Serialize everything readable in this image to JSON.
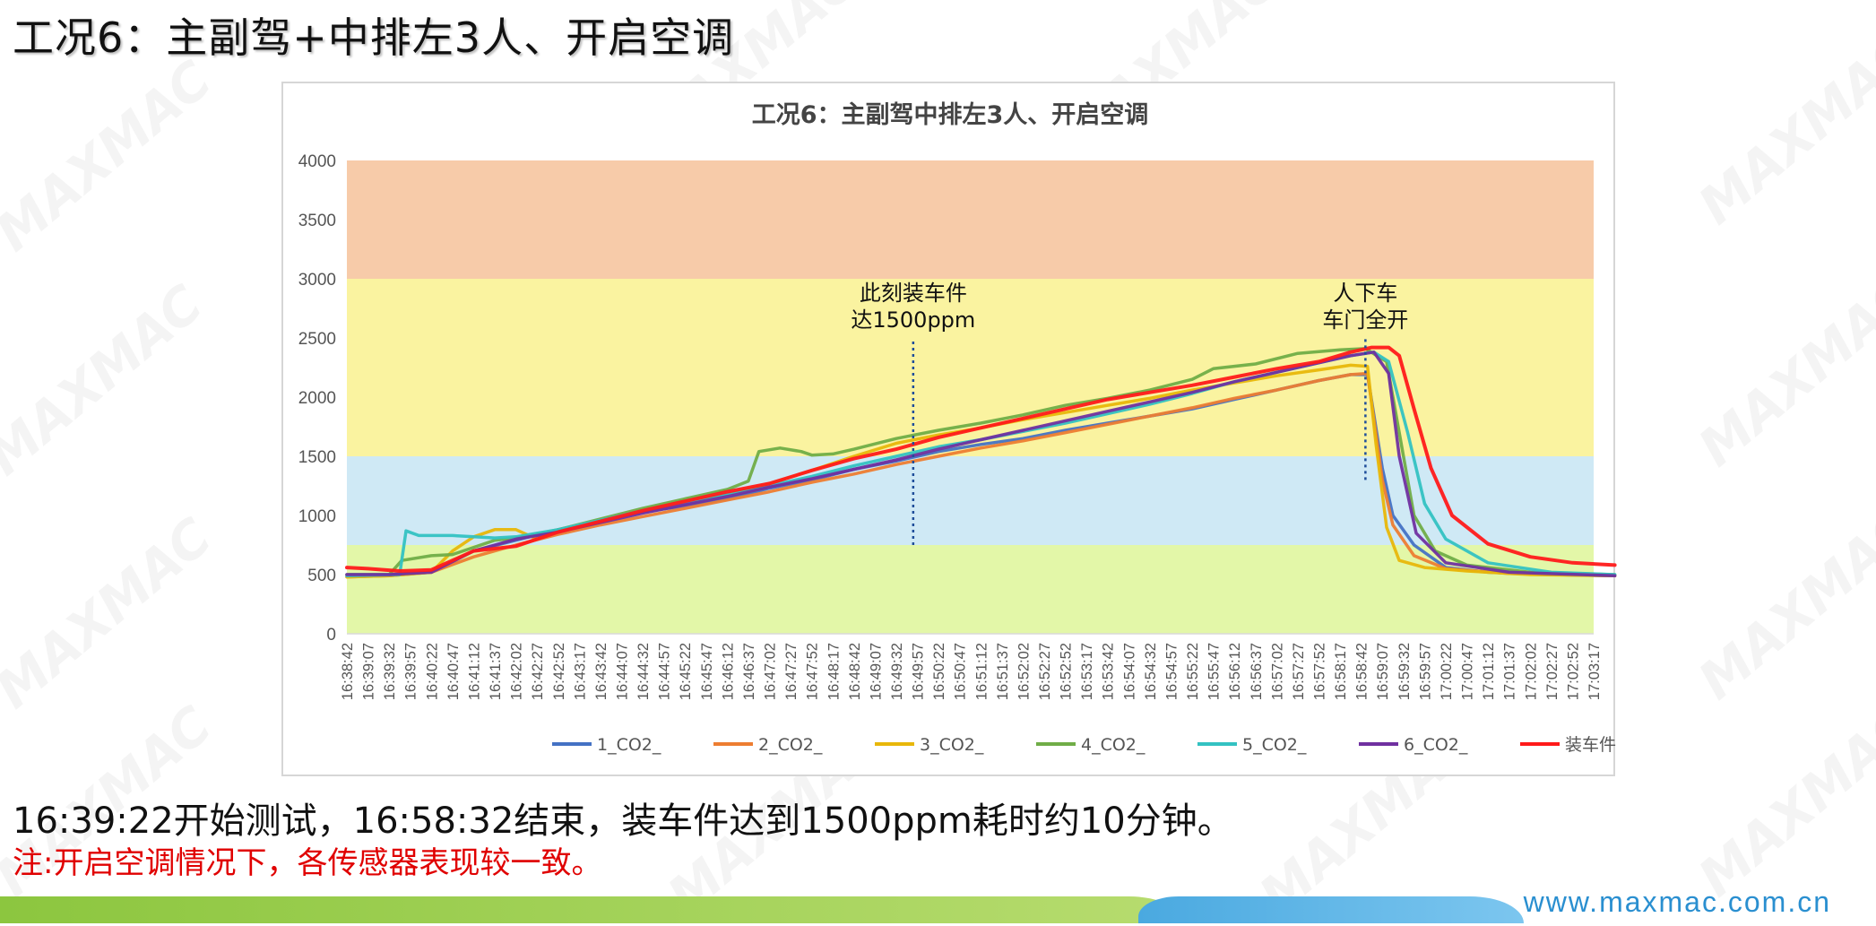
{
  "slide": {
    "title": "工况6：主副驾+中排左3人、开启空调",
    "caption": "16:39:22开始测试，16:58:32结束，装车件达到1500ppm耗时约10分钟。",
    "note": "注:开启空调情况下，各传感器表现较一致。",
    "footer_url": "www.maxmac.com.cn",
    "watermark": "MAXMAC"
  },
  "colors": {
    "band_red": "#f7cba9",
    "band_yellow": "#faf3a0",
    "band_blue": "#cfe9f5",
    "band_green": "#e3f7a8",
    "caption_text": "#111111",
    "note_text": "#e00000",
    "footer_green": "#8cc63f",
    "footer_blue": "#4aa9e0"
  },
  "chart_data": {
    "type": "line",
    "title": "工况6：主副驾中排左3人、开启空调",
    "xlabel": "",
    "ylabel": "",
    "ylim": [
      0,
      4000
    ],
    "yticks": [
      0,
      500,
      1000,
      1500,
      2000,
      2500,
      3000,
      3500,
      4000
    ],
    "x_tick_labels": [
      "16:38:42",
      "16:39:07",
      "16:39:32",
      "16:39:57",
      "16:40:22",
      "16:40:47",
      "16:41:12",
      "16:41:37",
      "16:42:02",
      "16:42:27",
      "16:42:52",
      "16:43:17",
      "16:43:42",
      "16:44:07",
      "16:44:32",
      "16:44:57",
      "16:45:22",
      "16:45:47",
      "16:46:12",
      "16:46:37",
      "16:47:02",
      "16:47:27",
      "16:47:52",
      "16:48:17",
      "16:48:42",
      "16:49:07",
      "16:49:32",
      "16:49:57",
      "16:50:22",
      "16:50:47",
      "16:51:12",
      "16:51:37",
      "16:52:02",
      "16:52:27",
      "16:52:52",
      "16:53:17",
      "16:53:42",
      "16:54:07",
      "16:54:32",
      "16:54:57",
      "16:55:22",
      "16:55:47",
      "16:56:12",
      "16:56:37",
      "16:57:02",
      "16:57:27",
      "16:57:52",
      "16:58:17",
      "16:58:42",
      "16:59:07",
      "16:59:32",
      "16:59:57",
      "17:00:22",
      "17:00:47",
      "17:01:12",
      "17:01:37",
      "17:02:02",
      "17:02:27",
      "17:02:52",
      "17:03:17"
    ],
    "bands": [
      {
        "from": 3000,
        "to": 4000,
        "color": "#f7cba9"
      },
      {
        "from": 1500,
        "to": 3000,
        "color": "#faf3a0"
      },
      {
        "from": 750,
        "to": 1500,
        "color": "#cfe9f5"
      },
      {
        "from": 0,
        "to": 750,
        "color": "#e3f7a8"
      }
    ],
    "series": [
      {
        "name": "1_CO2_",
        "color": "#4472c4",
        "points": [
          [
            0,
            500
          ],
          [
            2,
            500
          ],
          [
            4,
            520
          ],
          [
            6,
            700
          ],
          [
            8,
            790
          ],
          [
            10,
            880
          ],
          [
            12,
            960
          ],
          [
            14,
            1030
          ],
          [
            16,
            1080
          ],
          [
            18,
            1140
          ],
          [
            20,
            1230
          ],
          [
            22,
            1300
          ],
          [
            24,
            1390
          ],
          [
            26,
            1460
          ],
          [
            28,
            1540
          ],
          [
            30,
            1600
          ],
          [
            32,
            1650
          ],
          [
            34,
            1720
          ],
          [
            36,
            1780
          ],
          [
            38,
            1840
          ],
          [
            40,
            1900
          ],
          [
            42,
            1980
          ],
          [
            44,
            2060
          ],
          [
            46,
            2140
          ],
          [
            47.5,
            2190
          ],
          [
            48.3,
            2190
          ],
          [
            49,
            1400
          ],
          [
            49.5,
            1000
          ],
          [
            50.5,
            750
          ],
          [
            52,
            560
          ],
          [
            54,
            520
          ],
          [
            57,
            500
          ],
          [
            60,
            490
          ]
        ]
      },
      {
        "name": "2_CO2_",
        "color": "#ed7d31",
        "points": [
          [
            0,
            480
          ],
          [
            2,
            490
          ],
          [
            4,
            520
          ],
          [
            6,
            650
          ],
          [
            8,
            750
          ],
          [
            10,
            840
          ],
          [
            12,
            920
          ],
          [
            14,
            990
          ],
          [
            16,
            1060
          ],
          [
            18,
            1130
          ],
          [
            20,
            1200
          ],
          [
            22,
            1280
          ],
          [
            24,
            1350
          ],
          [
            26,
            1430
          ],
          [
            28,
            1500
          ],
          [
            30,
            1570
          ],
          [
            32,
            1630
          ],
          [
            34,
            1700
          ],
          [
            36,
            1770
          ],
          [
            38,
            1840
          ],
          [
            40,
            1910
          ],
          [
            42,
            1990
          ],
          [
            44,
            2060
          ],
          [
            46,
            2140
          ],
          [
            47.5,
            2190
          ],
          [
            48.3,
            2200
          ],
          [
            49,
            1300
          ],
          [
            49.5,
            920
          ],
          [
            50.5,
            660
          ],
          [
            52,
            550
          ],
          [
            55,
            510
          ],
          [
            60,
            490
          ]
        ]
      },
      {
        "name": "3_CO2_",
        "color": "#e8b70a",
        "points": [
          [
            0,
            480
          ],
          [
            2,
            490
          ],
          [
            4,
            520
          ],
          [
            5,
            700
          ],
          [
            6,
            820
          ],
          [
            7,
            880
          ],
          [
            8,
            880
          ],
          [
            9,
            800
          ],
          [
            10,
            860
          ],
          [
            12,
            940
          ],
          [
            14,
            1040
          ],
          [
            16,
            1120
          ],
          [
            18,
            1180
          ],
          [
            20,
            1270
          ],
          [
            22,
            1380
          ],
          [
            24,
            1500
          ],
          [
            26,
            1610
          ],
          [
            28,
            1680
          ],
          [
            30,
            1740
          ],
          [
            32,
            1810
          ],
          [
            34,
            1870
          ],
          [
            36,
            1930
          ],
          [
            38,
            1990
          ],
          [
            40,
            2060
          ],
          [
            42,
            2120
          ],
          [
            44,
            2180
          ],
          [
            46,
            2230
          ],
          [
            47.5,
            2270
          ],
          [
            48.3,
            2260
          ],
          [
            48.7,
            1600
          ],
          [
            49.2,
            900
          ],
          [
            49.8,
            620
          ],
          [
            51,
            560
          ],
          [
            53,
            530
          ],
          [
            56,
            500
          ],
          [
            60,
            490
          ]
        ]
      },
      {
        "name": "4_CO2_",
        "color": "#70ad47",
        "points": [
          [
            0,
            500
          ],
          [
            2,
            500
          ],
          [
            2.6,
            620
          ],
          [
            4,
            660
          ],
          [
            5,
            670
          ],
          [
            6,
            730
          ],
          [
            7,
            790
          ],
          [
            8,
            810
          ],
          [
            10,
            880
          ],
          [
            12,
            970
          ],
          [
            14,
            1060
          ],
          [
            16,
            1140
          ],
          [
            18,
            1220
          ],
          [
            19,
            1290
          ],
          [
            19.5,
            1540
          ],
          [
            20.5,
            1570
          ],
          [
            21.5,
            1540
          ],
          [
            22,
            1510
          ],
          [
            23,
            1520
          ],
          [
            24,
            1560
          ],
          [
            26,
            1650
          ],
          [
            28,
            1720
          ],
          [
            30,
            1780
          ],
          [
            32,
            1850
          ],
          [
            34,
            1930
          ],
          [
            36,
            1990
          ],
          [
            38,
            2060
          ],
          [
            40,
            2150
          ],
          [
            41,
            2240
          ],
          [
            43,
            2280
          ],
          [
            45,
            2370
          ],
          [
            47,
            2400
          ],
          [
            48.2,
            2410
          ],
          [
            49.2,
            2300
          ],
          [
            49.8,
            1700
          ],
          [
            50.5,
            1000
          ],
          [
            51.5,
            700
          ],
          [
            53,
            580
          ],
          [
            56,
            520
          ],
          [
            60,
            500
          ]
        ]
      },
      {
        "name": "5_CO2_",
        "color": "#33c2c2",
        "points": [
          [
            0,
            490
          ],
          [
            2.5,
            500
          ],
          [
            2.8,
            870
          ],
          [
            3.4,
            830
          ],
          [
            5,
            830
          ],
          [
            6,
            820
          ],
          [
            7,
            810
          ],
          [
            8,
            820
          ],
          [
            10,
            880
          ],
          [
            12,
            960
          ],
          [
            14,
            1040
          ],
          [
            16,
            1100
          ],
          [
            18,
            1180
          ],
          [
            20,
            1250
          ],
          [
            22,
            1330
          ],
          [
            24,
            1420
          ],
          [
            26,
            1500
          ],
          [
            28,
            1580
          ],
          [
            30,
            1640
          ],
          [
            32,
            1710
          ],
          [
            34,
            1780
          ],
          [
            36,
            1860
          ],
          [
            38,
            1940
          ],
          [
            40,
            2030
          ],
          [
            42,
            2130
          ],
          [
            44,
            2210
          ],
          [
            46,
            2290
          ],
          [
            47.5,
            2350
          ],
          [
            48.6,
            2380
          ],
          [
            49.3,
            2300
          ],
          [
            50.2,
            1700
          ],
          [
            51,
            1100
          ],
          [
            52,
            800
          ],
          [
            54,
            600
          ],
          [
            57,
            520
          ],
          [
            60,
            500
          ]
        ]
      },
      {
        "name": "6_CO2_",
        "color": "#7030a0",
        "points": [
          [
            0,
            500
          ],
          [
            2,
            500
          ],
          [
            4,
            520
          ],
          [
            6,
            700
          ],
          [
            8,
            800
          ],
          [
            10,
            860
          ],
          [
            12,
            940
          ],
          [
            14,
            1020
          ],
          [
            16,
            1090
          ],
          [
            18,
            1160
          ],
          [
            20,
            1240
          ],
          [
            22,
            1310
          ],
          [
            24,
            1390
          ],
          [
            26,
            1470
          ],
          [
            28,
            1560
          ],
          [
            30,
            1640
          ],
          [
            32,
            1720
          ],
          [
            34,
            1800
          ],
          [
            36,
            1880
          ],
          [
            38,
            1960
          ],
          [
            40,
            2040
          ],
          [
            42,
            2130
          ],
          [
            44,
            2210
          ],
          [
            46,
            2290
          ],
          [
            47.5,
            2350
          ],
          [
            48.6,
            2380
          ],
          [
            49.3,
            2200
          ],
          [
            49.8,
            1500
          ],
          [
            50.6,
            850
          ],
          [
            52,
            600
          ],
          [
            55,
            520
          ],
          [
            60,
            490
          ]
        ]
      },
      {
        "name": "装车件",
        "color": "#ff1a1a",
        "points": [
          [
            0,
            560
          ],
          [
            1,
            550
          ],
          [
            2.5,
            530
          ],
          [
            4,
            540
          ],
          [
            6,
            700
          ],
          [
            8,
            740
          ],
          [
            10,
            860
          ],
          [
            12,
            950
          ],
          [
            14,
            1040
          ],
          [
            16,
            1120
          ],
          [
            18,
            1200
          ],
          [
            20,
            1270
          ],
          [
            22,
            1380
          ],
          [
            24,
            1480
          ],
          [
            26,
            1560
          ],
          [
            28,
            1660
          ],
          [
            30,
            1740
          ],
          [
            32,
            1820
          ],
          [
            34,
            1900
          ],
          [
            36,
            1980
          ],
          [
            38,
            2040
          ],
          [
            40,
            2100
          ],
          [
            42,
            2170
          ],
          [
            44,
            2240
          ],
          [
            46,
            2300
          ],
          [
            47.5,
            2380
          ],
          [
            48.5,
            2420
          ],
          [
            49.3,
            2420
          ],
          [
            49.8,
            2350
          ],
          [
            50.5,
            1900
          ],
          [
            51.3,
            1400
          ],
          [
            52.3,
            1000
          ],
          [
            54,
            760
          ],
          [
            56,
            650
          ],
          [
            58,
            600
          ],
          [
            60,
            580
          ]
        ]
      }
    ],
    "annotations": [
      {
        "text_lines": [
          "此刻装车件",
          "达1500ppm"
        ],
        "x": 26.8,
        "line_from": 750,
        "line_to": 2500
      },
      {
        "text_lines": [
          "人下车",
          "车门全开"
        ],
        "x": 48.2,
        "line_from": 1300,
        "line_to": 2500
      }
    ],
    "grid": false,
    "legend_position": "bottom"
  }
}
